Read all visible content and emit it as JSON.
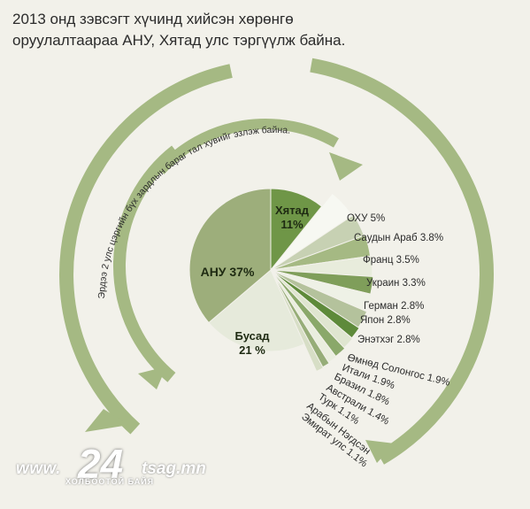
{
  "title_lines": [
    "2013 онд зэвсэгт хүчинд хийсэн хөрөнгө",
    "оруулалтаараа АНУ, Хятад улс тэргүүлж байна."
  ],
  "arc_annotation": "Эрдээ 2 улс цэргийн бүх зардлын бараг тал хувийг эзлэж байна.",
  "watermark": {
    "www": "www.",
    "num": "24",
    "domain": "tsag.mn",
    "tagline": "ХОЛБООТОЙ БАЙЯ"
  },
  "colors": {
    "background": "#f2f1ea",
    "arrow": "#a5b983",
    "usa": "#9dae7b",
    "china": "#6f9647",
    "other": "#e6eadb"
  },
  "chart_data": {
    "type": "pie",
    "title": "2013 онд зэвсэгт хүчинд хийсэн хөрөнгө оруулалтаараа АНУ, Хятад улс тэргүүлж байна.",
    "slices": [
      {
        "label": "Хятад",
        "value_label": "11%",
        "value": 11,
        "color": "#6f9647"
      },
      {
        "label": "ОХУ 5%",
        "value": 5,
        "color": "#f7f8f2"
      },
      {
        "label": "Саудын Араб 3.8%",
        "value": 3.8,
        "color": "#c7d1b3"
      },
      {
        "label": "Франц 3.5%",
        "value": 3.5,
        "color": "#a5b983"
      },
      {
        "label": "Украин 3.3%",
        "value": 3.3,
        "color": "#e8ecdc"
      },
      {
        "label": "Герман 2.8%",
        "value": 2.8,
        "color": "#7f9e5a"
      },
      {
        "label": "Япон 2.8%",
        "value": 2.8,
        "color": "#eef1e6"
      },
      {
        "label": "Энэтхэг 2.8%",
        "value": 2.8,
        "color": "#b4c29c"
      },
      {
        "label": "Өмнөд Солонгос 1.9%",
        "value": 1.9,
        "color": "#5e8a3a"
      },
      {
        "label": "Итали 1.9%",
        "value": 1.9,
        "color": "#dfe5d0"
      },
      {
        "label": "Бразил 1.8%",
        "value": 1.8,
        "color": "#8aa86a"
      },
      {
        "label": "Австрали 1.4%",
        "value": 1.4,
        "color": "#eaeedf"
      },
      {
        "label": "Турк 1.1%",
        "value": 1.1,
        "color": "#96ad78"
      },
      {
        "label": "Арабын Нэгдсэн Эмират улс 1.1%",
        "value": 1.1,
        "color": "#d7dec6"
      },
      {
        "label": "Бусад",
        "value_label": "21 %",
        "value": 21,
        "color": "#e6eadb"
      },
      {
        "label": "АНУ",
        "value_label": "37%",
        "value": 37,
        "color": "#9dae7b"
      }
    ]
  }
}
